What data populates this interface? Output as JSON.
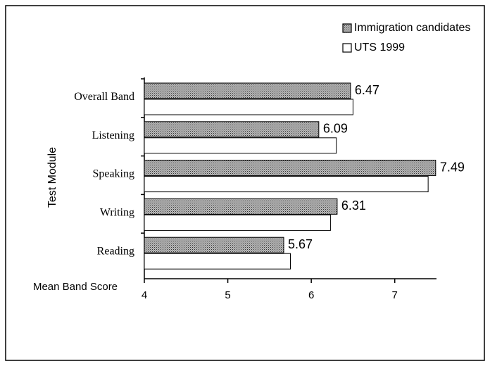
{
  "chart_data": {
    "type": "bar",
    "orientation": "horizontal",
    "xlabel": "Mean Band Score",
    "ylabel": "Test Module",
    "categories": [
      "Overall Band",
      "Listening",
      "Speaking",
      "Writing",
      "Reading"
    ],
    "series": [
      {
        "name": "Immigration candidates",
        "color": "#9a9a9a",
        "values": [
          6.47,
          6.09,
          7.49,
          6.31,
          5.67
        ],
        "show_labels": true
      },
      {
        "name": "UTS 1999",
        "color": "#ffffff",
        "values": [
          6.5,
          6.3,
          7.4,
          6.23,
          5.75
        ],
        "show_labels": false
      }
    ],
    "xlim": [
      4,
      7.5
    ],
    "xticks": [
      4,
      5,
      6,
      7
    ],
    "legend": "top-right"
  }
}
